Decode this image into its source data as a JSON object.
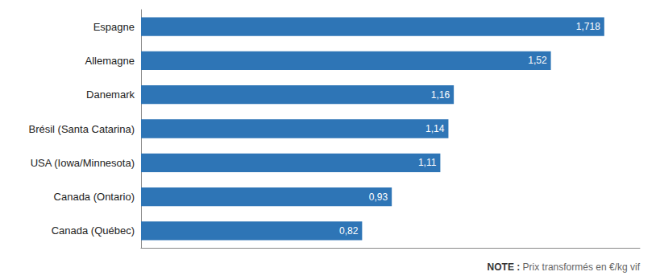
{
  "chart_data": {
    "type": "bar",
    "orientation": "horizontal",
    "categories": [
      "Canada (Québec)",
      "Canada (Ontario)",
      "USA (Iowa/Minnesota)",
      "Brésil (Santa Catarina)",
      "Danemark",
      "Allemagne",
      "Espagne"
    ],
    "values": [
      0.82,
      0.93,
      1.11,
      1.14,
      1.16,
      1.52,
      1.718
    ],
    "value_labels": [
      "0,82",
      "0,93",
      "1,11",
      "1,14",
      "1,16",
      "1,52",
      "1,718"
    ],
    "data_labels": true,
    "color": "#2E75B6",
    "xlim": [
      0,
      1.85
    ],
    "tick_labels": "y",
    "grid": false,
    "annotations": [
      "NOTE :",
      "Prix transformés en €/kg vif"
    ]
  }
}
